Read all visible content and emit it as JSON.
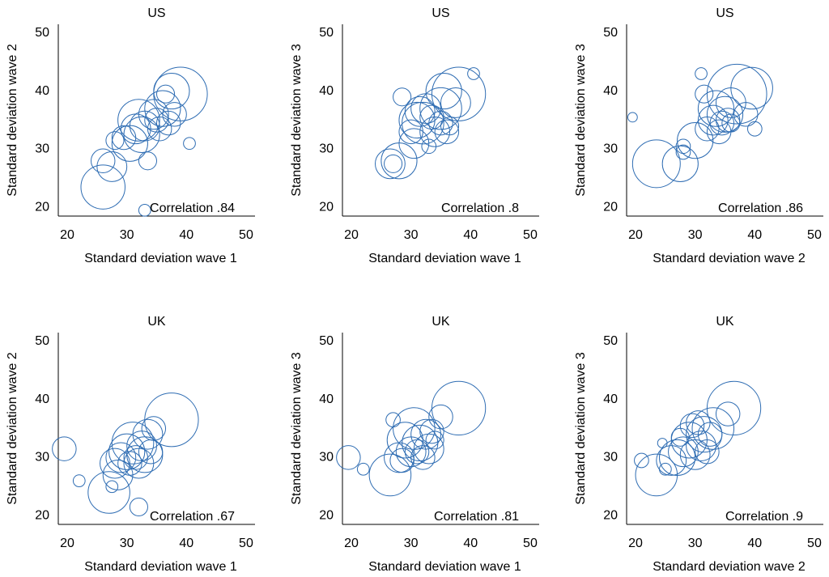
{
  "chart_data": [
    {
      "type": "scatter",
      "title": "US",
      "xlabel": "Standard deviation wave 1",
      "ylabel": "Standard deviation wave 2",
      "annotation": "Correlation .84",
      "color": "#2f6db3",
      "x": [
        26,
        26,
        27.5,
        28,
        29.5,
        30.5,
        31.5,
        32,
        32.5,
        33,
        33.5,
        33,
        34.5,
        35,
        35.5,
        36,
        36.5,
        37,
        38,
        37.5,
        39,
        40.5
      ],
      "y": [
        23.5,
        28,
        27,
        31.5,
        32,
        31,
        33.5,
        35,
        32.5,
        34,
        28,
        19.5,
        36,
        35,
        33.5,
        37,
        39.5,
        34.5,
        36,
        40,
        39.5,
        31
      ],
      "sizes": [
        3.7,
        2,
        2.5,
        1.5,
        2,
        3,
        2.5,
        3.5,
        3,
        2.5,
        1.5,
        1,
        2.5,
        2,
        2,
        3,
        1.5,
        2,
        2,
        3,
        4.5,
        1
      ],
      "xlim": [
        18.5,
        51.5
      ],
      "ylim": [
        18.5,
        51.5
      ],
      "xticks": [
        20,
        30,
        40,
        50
      ],
      "yticks": [
        20,
        30,
        40,
        50
      ]
    },
    {
      "type": "scatter",
      "title": "US",
      "xlabel": "Standard deviation wave 1",
      "ylabel": "Standard deviation wave 3",
      "annotation": "Correlation .8",
      "color": "#2f6db3",
      "x": [
        26.5,
        27,
        28,
        28.5,
        30,
        30.5,
        31,
        31.5,
        32,
        32.5,
        33,
        33.5,
        34,
        35,
        35.5,
        36,
        36.5,
        37.5,
        38,
        40.5,
        35
      ],
      "y": [
        27.5,
        27.5,
        28,
        39,
        33,
        31,
        35,
        36.5,
        34.5,
        37,
        30.5,
        35.5,
        33,
        34.5,
        40,
        33,
        34,
        38,
        39.5,
        43,
        37
      ],
      "sizes": [
        2.5,
        1.5,
        3,
        1.5,
        2,
        2.5,
        3,
        2.5,
        3.5,
        2.5,
        1.2,
        2,
        2.5,
        2,
        3,
        2,
        1.5,
        2.5,
        4.5,
        1,
        3.5
      ],
      "xlim": [
        18.5,
        51.5
      ],
      "ylim": [
        18.5,
        51.5
      ],
      "xticks": [
        20,
        30,
        40,
        50
      ],
      "yticks": [
        20,
        30,
        40,
        50
      ]
    },
    {
      "type": "scatter",
      "title": "US",
      "xlabel": "Standard deviation wave 2",
      "ylabel": "Standard deviation wave 3",
      "annotation": "Correlation .86",
      "color": "#2f6db3",
      "x": [
        19.5,
        23.5,
        27.5,
        28,
        28,
        30,
        31,
        31.5,
        32,
        33,
        33.5,
        34,
        34.5,
        35,
        35.5,
        36,
        36,
        37,
        39.5,
        40,
        38.5
      ],
      "y": [
        35.5,
        27.5,
        27.5,
        30.5,
        29.5,
        31.5,
        43,
        39.5,
        33.5,
        35,
        37,
        33,
        34.5,
        36,
        35,
        38,
        34.5,
        39.5,
        40.5,
        33.5,
        36
      ],
      "sizes": [
        0.8,
        4,
        3,
        1.2,
        1.2,
        3,
        1,
        1.5,
        2,
        2.5,
        3,
        2,
        2,
        3,
        2,
        2.5,
        1.5,
        5,
        3.5,
        1.2,
        2
      ],
      "xlim": [
        18.5,
        51.5
      ],
      "ylim": [
        18.5,
        51.5
      ],
      "xticks": [
        20,
        30,
        40,
        50
      ],
      "yticks": [
        20,
        30,
        40,
        50
      ]
    },
    {
      "type": "scatter",
      "title": "UK",
      "xlabel": "Standard deviation wave 1",
      "ylabel": "Standard deviation wave 2",
      "annotation": "Correlation .67",
      "color": "#2f6db3",
      "x": [
        19.5,
        22,
        27,
        27.5,
        28,
        28.5,
        29,
        30,
        30.5,
        31,
        31.5,
        32,
        32,
        32.5,
        33,
        33.5,
        34,
        34.5,
        37.5
      ],
      "y": [
        31.5,
        26,
        24,
        25,
        29,
        27,
        30,
        31,
        29,
        32.5,
        30,
        29,
        21.5,
        32,
        30.5,
        34,
        31,
        35,
        36.5
      ],
      "sizes": [
        2,
        1,
        3.5,
        1,
        2.5,
        2.5,
        2.5,
        3,
        2,
        3.5,
        2,
        2.5,
        1.5,
        2.5,
        3,
        2.5,
        2,
        2,
        4.5
      ],
      "xlim": [
        18.5,
        51.5
      ],
      "ylim": [
        18.5,
        51.5
      ],
      "xticks": [
        20,
        30,
        40,
        50
      ],
      "yticks": [
        20,
        30,
        40,
        50
      ]
    },
    {
      "type": "scatter",
      "title": "UK",
      "xlabel": "Standard deviation wave 1",
      "ylabel": "Standard deviation wave 3",
      "annotation": "Correlation .81",
      "color": "#2f6db3",
      "x": [
        19.5,
        22,
        26.5,
        27,
        28,
        28.5,
        29,
        30,
        30.5,
        31,
        31.5,
        32,
        32.5,
        33,
        33.5,
        34,
        35,
        38
      ],
      "y": [
        30,
        28,
        27,
        36.5,
        30,
        29.5,
        33,
        31,
        35,
        31,
        32.5,
        30,
        34,
        31.5,
        34.5,
        33,
        37,
        38.5
      ],
      "sizes": [
        2,
        1,
        3.5,
        1.2,
        2.5,
        2,
        3,
        2.5,
        3.5,
        2,
        3,
        2,
        2.5,
        2.5,
        2,
        1.5,
        2,
        4.5
      ],
      "xlim": [
        18.5,
        51.5
      ],
      "ylim": [
        18.5,
        51.5
      ],
      "xticks": [
        20,
        30,
        40,
        50
      ],
      "yticks": [
        20,
        30,
        40,
        50
      ]
    },
    {
      "type": "scatter",
      "title": "UK",
      "xlabel": "Standard deviation wave 2",
      "ylabel": "Standard deviation wave 3",
      "annotation": "Correlation .9",
      "color": "#2f6db3",
      "x": [
        21,
        23.5,
        24.5,
        25,
        26,
        27,
        27.5,
        28,
        29,
        29.5,
        30,
        30.5,
        31,
        31.5,
        32,
        32.5,
        33,
        35.5,
        36.5
      ],
      "y": [
        29.5,
        27,
        32.5,
        28,
        29.5,
        30,
        33.5,
        31,
        33,
        35.5,
        30.5,
        36,
        32,
        34,
        31,
        34,
        35,
        37.5,
        38.5
      ],
      "sizes": [
        1.2,
        3.5,
        0.8,
        1,
        2.5,
        3,
        1.5,
        2.5,
        3,
        2,
        2.5,
        2,
        2.5,
        3,
        2,
        2,
        3.5,
        2,
        4.5
      ],
      "xlim": [
        18.5,
        51.5
      ],
      "ylim": [
        18.5,
        51.5
      ],
      "xticks": [
        20,
        30,
        40,
        50
      ],
      "yticks": [
        20,
        30,
        40,
        50
      ]
    }
  ]
}
